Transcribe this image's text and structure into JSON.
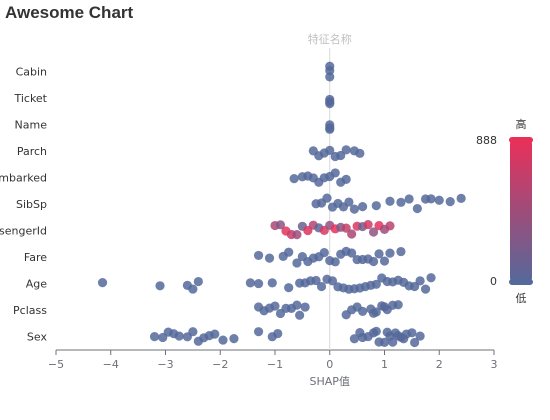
{
  "chart_data": {
    "type": "scatter",
    "title": "Awesome Chart",
    "xlabel": "SHAP值",
    "ylabel": "特征名称",
    "categories": [
      "Sex",
      "Pclass",
      "Age",
      "Fare",
      "PassengerId",
      "SibSp",
      "Embarked",
      "Parch",
      "Name",
      "Ticket",
      "Cabin"
    ],
    "xlim": [
      -5,
      3
    ],
    "xticks": [
      -5,
      -4,
      -3,
      -2,
      -1,
      0,
      1,
      2,
      3
    ],
    "visual_map": {
      "min": 0,
      "max": 888,
      "min_label": "0",
      "max_label": "888",
      "high_text": "高",
      "low_text": "低",
      "low_color": "#55699a",
      "high_color": "#e8305a"
    },
    "point_color": "#55699a",
    "grid": false,
    "series": [
      {
        "feature": "Sex",
        "points": [
          [
            -3.2,
            0
          ],
          [
            -3.05,
            0
          ],
          [
            -2.95,
            0
          ],
          [
            -2.85,
            0
          ],
          [
            -2.75,
            0
          ],
          [
            -2.6,
            0
          ],
          [
            -2.5,
            0
          ],
          [
            -2.4,
            0
          ],
          [
            -2.3,
            0
          ],
          [
            -2.2,
            0
          ],
          [
            -2.1,
            0
          ],
          [
            -1.95,
            0
          ],
          [
            -1.75,
            0
          ],
          [
            -1.3,
            0
          ],
          [
            -1.05,
            0
          ],
          [
            -0.95,
            0
          ],
          [
            0.45,
            0
          ],
          [
            0.55,
            0
          ],
          [
            0.6,
            0
          ],
          [
            0.7,
            0
          ],
          [
            0.8,
            0
          ],
          [
            0.85,
            0
          ],
          [
            0.9,
            0
          ],
          [
            1.0,
            0
          ],
          [
            1.05,
            0
          ],
          [
            1.1,
            0
          ],
          [
            1.15,
            0
          ],
          [
            1.2,
            0
          ],
          [
            1.25,
            0
          ],
          [
            1.3,
            0
          ],
          [
            1.35,
            0
          ],
          [
            1.4,
            0
          ],
          [
            1.5,
            0
          ],
          [
            1.55,
            0
          ],
          [
            1.65,
            0
          ]
        ]
      },
      {
        "feature": "Pclass",
        "points": [
          [
            -1.3,
            0
          ],
          [
            -1.2,
            0
          ],
          [
            -1.1,
            0
          ],
          [
            -1.0,
            0
          ],
          [
            -0.9,
            0
          ],
          [
            -0.8,
            0
          ],
          [
            -0.7,
            0
          ],
          [
            -0.6,
            0
          ],
          [
            -0.55,
            0
          ],
          [
            -0.45,
            0
          ],
          [
            0.3,
            0
          ],
          [
            0.4,
            0
          ],
          [
            0.5,
            0
          ],
          [
            0.6,
            0
          ],
          [
            0.75,
            0
          ],
          [
            0.8,
            0
          ],
          [
            0.85,
            0
          ],
          [
            0.95,
            0
          ],
          [
            1.0,
            0
          ],
          [
            1.05,
            0
          ],
          [
            1.15,
            0
          ],
          [
            1.25,
            0
          ]
        ]
      },
      {
        "feature": "Age",
        "points": [
          [
            -4.15,
            0
          ],
          [
            -3.1,
            0
          ],
          [
            -2.6,
            0
          ],
          [
            -2.5,
            0
          ],
          [
            -2.4,
            0
          ],
          [
            -1.45,
            0
          ],
          [
            -1.3,
            0
          ],
          [
            -1.05,
            0
          ],
          [
            -0.75,
            0
          ],
          [
            -0.55,
            0
          ],
          [
            -0.45,
            0
          ],
          [
            -0.35,
            0
          ],
          [
            -0.25,
            0
          ],
          [
            -0.15,
            0
          ],
          [
            -0.05,
            0
          ],
          [
            0.05,
            0
          ],
          [
            0.15,
            0
          ],
          [
            0.25,
            0
          ],
          [
            0.35,
            0
          ],
          [
            0.45,
            0
          ],
          [
            0.55,
            0
          ],
          [
            0.65,
            0
          ],
          [
            0.75,
            0
          ],
          [
            0.85,
            0
          ],
          [
            0.95,
            0
          ],
          [
            1.05,
            0
          ],
          [
            1.15,
            0
          ],
          [
            1.25,
            0
          ],
          [
            1.35,
            0
          ],
          [
            1.45,
            0
          ],
          [
            1.55,
            0
          ],
          [
            1.65,
            0
          ],
          [
            1.75,
            0
          ],
          [
            1.85,
            0
          ]
        ]
      },
      {
        "feature": "Fare",
        "points": [
          [
            -1.3,
            0
          ],
          [
            -1.1,
            0
          ],
          [
            -0.85,
            0
          ],
          [
            -0.75,
            0
          ],
          [
            -0.6,
            0
          ],
          [
            -0.5,
            0
          ],
          [
            -0.4,
            0
          ],
          [
            -0.3,
            0
          ],
          [
            -0.2,
            0
          ],
          [
            -0.1,
            0
          ],
          [
            0.0,
            0
          ],
          [
            0.1,
            0
          ],
          [
            0.2,
            0
          ],
          [
            0.3,
            0
          ],
          [
            0.4,
            0
          ],
          [
            0.5,
            0
          ],
          [
            0.6,
            0
          ],
          [
            0.7,
            0
          ],
          [
            0.8,
            0
          ],
          [
            0.9,
            0
          ],
          [
            1.0,
            0
          ],
          [
            1.1,
            0
          ],
          [
            1.3,
            0
          ]
        ]
      },
      {
        "feature": "PassengerId",
        "points": [
          [
            -1.0,
            520
          ],
          [
            -0.9,
            300
          ],
          [
            -0.8,
            860
          ],
          [
            -0.7,
            700
          ],
          [
            -0.6,
            450
          ],
          [
            -0.5,
            120
          ],
          [
            -0.4,
            820
          ],
          [
            -0.3,
            600
          ],
          [
            -0.2,
            50
          ],
          [
            -0.1,
            760
          ],
          [
            0.0,
            380
          ],
          [
            0.1,
            880
          ],
          [
            0.2,
            230
          ],
          [
            0.3,
            660
          ],
          [
            0.4,
            510
          ],
          [
            0.5,
            800
          ],
          [
            0.6,
            150
          ],
          [
            0.7,
            720
          ],
          [
            0.8,
            330
          ],
          [
            0.9,
            860
          ],
          [
            1.0,
            420
          ],
          [
            1.1,
            600
          ]
        ]
      },
      {
        "feature": "SibSp",
        "points": [
          [
            -0.25,
            0
          ],
          [
            -0.15,
            0
          ],
          [
            -0.05,
            0
          ],
          [
            0.05,
            0
          ],
          [
            0.15,
            0
          ],
          [
            0.25,
            0
          ],
          [
            0.35,
            0
          ],
          [
            0.45,
            0
          ],
          [
            0.6,
            0
          ],
          [
            0.85,
            0
          ],
          [
            1.1,
            0
          ],
          [
            1.3,
            0
          ],
          [
            1.45,
            0
          ],
          [
            1.6,
            0
          ],
          [
            1.75,
            0
          ],
          [
            1.85,
            0
          ],
          [
            2.0,
            0
          ],
          [
            2.2,
            0
          ],
          [
            2.4,
            0
          ]
        ]
      },
      {
        "feature": "Embarked",
        "points": [
          [
            -0.65,
            0
          ],
          [
            -0.5,
            0
          ],
          [
            -0.4,
            0
          ],
          [
            -0.3,
            0
          ],
          [
            -0.2,
            0
          ],
          [
            -0.1,
            0
          ],
          [
            0.0,
            0
          ],
          [
            0.1,
            0
          ],
          [
            0.2,
            0
          ],
          [
            0.3,
            0
          ]
        ]
      },
      {
        "feature": "Parch",
        "points": [
          [
            -0.3,
            0
          ],
          [
            -0.2,
            0
          ],
          [
            -0.1,
            0
          ],
          [
            0.0,
            0
          ],
          [
            0.1,
            0
          ],
          [
            0.2,
            0
          ],
          [
            0.3,
            0
          ],
          [
            0.45,
            0
          ],
          [
            0.55,
            0
          ]
        ]
      },
      {
        "feature": "Name",
        "points": [
          [
            0.0,
            0
          ],
          [
            0.0,
            0
          ],
          [
            0.0,
            0
          ]
        ]
      },
      {
        "feature": "Ticket",
        "points": [
          [
            0.0,
            0
          ],
          [
            0.0,
            0
          ],
          [
            0.0,
            0
          ]
        ]
      },
      {
        "feature": "Cabin",
        "points": [
          [
            0.0,
            0
          ],
          [
            0.0,
            0
          ],
          [
            0.0,
            0
          ]
        ]
      }
    ]
  }
}
